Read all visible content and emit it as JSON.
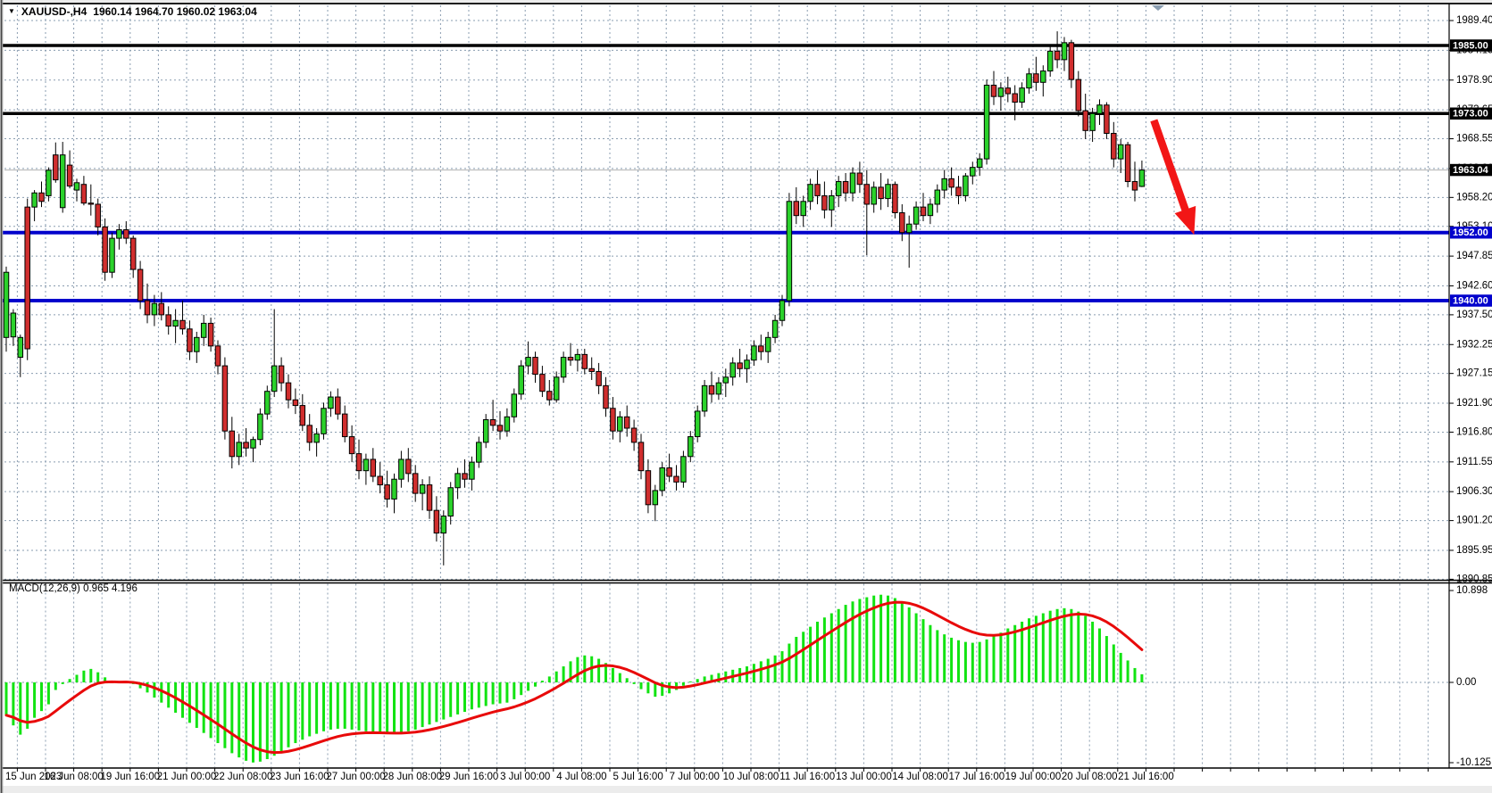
{
  "window": {
    "symbol_title": "XAUUSD-,H4",
    "ohlc_text": "1960.14 1964.70 1960.02 1963.04"
  },
  "indicator": {
    "label": "MACD(12,26,9) 0.965 4.196"
  },
  "colors": {
    "background": "#FFFFFF",
    "grid": "#8A9DB0",
    "candle_up": "#2BD22B",
    "candle_down": "#D02E2E",
    "candle_border": "#000000",
    "macd_bar": "#12E312",
    "macd_signal": "#E80A0A",
    "hline_black": "#000000",
    "hline_blue": "#0202CC",
    "current_price_line": "#BBBBBB",
    "badge_text": "#FFFFFF",
    "arrow": "#F21616",
    "axis_text": "#000000",
    "chrome": "#ECECEC"
  },
  "price_axis": {
    "ticks": [
      1989.4,
      1984.15,
      1978.9,
      1973.65,
      1968.55,
      1963.3,
      1958.2,
      1953.1,
      1947.85,
      1942.6,
      1937.5,
      1932.25,
      1927.15,
      1921.9,
      1916.8,
      1911.55,
      1906.3,
      1901.2,
      1895.95,
      1890.85
    ]
  },
  "time_axis": {
    "labels": [
      "15 Jun 2023",
      "16 Jun 08:00",
      "19 Jun 16:00",
      "21 Jun 00:00",
      "22 Jun 08:00",
      "23 Jun 16:00",
      "27 Jun 00:00",
      "28 Jun 08:00",
      "29 Jun 16:00",
      "3 Jul 00:00",
      "4 Jul 08:00",
      "5 Jul 16:00",
      "7 Jul 00:00",
      "10 Jul 08:00",
      "11 Jul 16:00",
      "13 Jul 00:00",
      "14 Jul 08:00",
      "17 Jul 16:00",
      "19 Jul 00:00",
      "20 Jul 08:00",
      "21 Jul 16:00"
    ]
  },
  "macd_axis": {
    "labels": [
      "10.898",
      "0.00",
      "-10.125"
    ],
    "values": [
      10.898,
      0.0,
      -10.125
    ]
  },
  "chart_data": [
    {
      "type": "candlestick",
      "symbol": "XAUUSD",
      "timeframe": "H4",
      "title": "XAUUSD-,H4",
      "last_ohlc": {
        "open": 1960.14,
        "high": 1964.7,
        "low": 1960.02,
        "close": 1963.04
      },
      "current_price": 1963.04,
      "ylim": [
        1890.6,
        1990.2
      ],
      "bars_per_x_label": 8,
      "hlines": [
        {
          "price": 1985.0,
          "style": "black"
        },
        {
          "price": 1973.0,
          "style": "black"
        },
        {
          "price": 1952.0,
          "style": "blue"
        },
        {
          "price": 1940.0,
          "style": "blue"
        }
      ],
      "arrow": {
        "from_bar": 162.7,
        "from_price": 1971.8,
        "to_bar": 168.4,
        "to_price": 1951.6
      },
      "candles": [
        [
          1933.5,
          1946.0,
          1931.0,
          1945.0
        ],
        [
          1933.6,
          1938.5,
          1932.0,
          1937.8
        ],
        [
          1930.0,
          1934.0,
          1926.5,
          1933.5
        ],
        [
          1956.5,
          1958.0,
          1929.5,
          1931.5
        ],
        [
          1956.5,
          1959.5,
          1954.0,
          1959.0
        ],
        [
          1959.0,
          1961.0,
          1956.5,
          1957.5
        ],
        [
          1958.5,
          1963.5,
          1957.5,
          1963.0
        ],
        [
          1965.7,
          1967.9,
          1960.8,
          1961.3
        ],
        [
          1956.4,
          1968.0,
          1955.5,
          1965.7
        ],
        [
          1963.9,
          1966.5,
          1959.8,
          1960.2
        ],
        [
          1959.5,
          1961.5,
          1957.5,
          1960.8
        ],
        [
          1960.5,
          1962.0,
          1956.8,
          1957.2
        ],
        [
          1957.2,
          1960.5,
          1955.0,
          1957.0
        ],
        [
          1957.0,
          1958.0,
          1951.5,
          1953.0
        ],
        [
          1953.0,
          1954.5,
          1943.5,
          1945.0
        ],
        [
          1945.0,
          1952.0,
          1944.0,
          1951.0
        ],
        [
          1951.0,
          1953.5,
          1949.0,
          1952.5
        ],
        [
          1952.5,
          1954.0,
          1950.0,
          1951.0
        ],
        [
          1951.0,
          1951.5,
          1944.0,
          1945.5
        ],
        [
          1945.5,
          1947.0,
          1938.5,
          1940.0
        ],
        [
          1940.0,
          1943.0,
          1936.0,
          1937.5
        ],
        [
          1937.5,
          1941.0,
          1935.5,
          1939.5
        ],
        [
          1939.5,
          1941.5,
          1936.5,
          1937.5
        ],
        [
          1937.5,
          1939.0,
          1934.0,
          1935.5
        ],
        [
          1935.5,
          1938.5,
          1932.5,
          1936.5
        ],
        [
          1936.5,
          1940.0,
          1934.0,
          1935.0
        ],
        [
          1935.0,
          1936.5,
          1929.5,
          1931.0
        ],
        [
          1931.0,
          1934.5,
          1929.0,
          1933.5
        ],
        [
          1933.5,
          1937.5,
          1932.0,
          1936.0
        ],
        [
          1936.0,
          1937.0,
          1931.0,
          1932.0
        ],
        [
          1932.0,
          1933.0,
          1927.0,
          1928.5
        ],
        [
          1928.5,
          1930.0,
          1915.5,
          1917.0
        ],
        [
          1917.0,
          1919.5,
          1910.4,
          1912.5
        ],
        [
          1912.5,
          1916.5,
          1911.0,
          1915.0
        ],
        [
          1915.0,
          1917.5,
          1912.5,
          1914.0
        ],
        [
          1914.0,
          1916.0,
          1911.5,
          1915.5
        ],
        [
          1915.5,
          1921.0,
          1914.5,
          1920.0
        ],
        [
          1920.0,
          1925.0,
          1919.0,
          1924.0
        ],
        [
          1924.0,
          1938.5,
          1923.0,
          1928.5
        ],
        [
          1928.5,
          1930.0,
          1924.0,
          1925.5
        ],
        [
          1925.5,
          1927.0,
          1921.0,
          1922.5
        ],
        [
          1922.5,
          1924.5,
          1920.0,
          1921.5
        ],
        [
          1921.5,
          1923.5,
          1917.0,
          1918.0
        ],
        [
          1918.0,
          1920.0,
          1913.5,
          1915.0
        ],
        [
          1915.0,
          1917.5,
          1912.5,
          1916.5
        ],
        [
          1916.5,
          1922.0,
          1915.5,
          1921.0
        ],
        [
          1921.0,
          1924.0,
          1919.5,
          1923.0
        ],
        [
          1923.0,
          1924.5,
          1919.0,
          1920.0
        ],
        [
          1920.0,
          1921.5,
          1915.0,
          1916.0
        ],
        [
          1916.0,
          1918.0,
          1911.5,
          1913.0
        ],
        [
          1913.0,
          1915.5,
          1908.5,
          1910.0
        ],
        [
          1910.0,
          1913.0,
          1907.5,
          1912.0
        ],
        [
          1912.0,
          1914.0,
          1908.0,
          1909.0
        ],
        [
          1909.0,
          1911.5,
          1906.0,
          1907.5
        ],
        [
          1907.5,
          1910.0,
          1903.5,
          1905.0
        ],
        [
          1905.0,
          1909.5,
          1902.5,
          1908.5
        ],
        [
          1908.5,
          1913.5,
          1907.0,
          1912.0
        ],
        [
          1912.0,
          1914.0,
          1908.0,
          1909.5
        ],
        [
          1909.5,
          1911.0,
          1904.5,
          1906.0
        ],
        [
          1906.0,
          1908.5,
          1903.0,
          1907.5
        ],
        [
          1907.5,
          1909.0,
          1901.5,
          1903.0
        ],
        [
          1903.0,
          1905.5,
          1897.5,
          1899.0
        ],
        [
          1899.0,
          1903.0,
          1893.3,
          1902.0
        ],
        [
          1902.0,
          1908.0,
          1900.5,
          1907.0
        ],
        [
          1907.0,
          1910.5,
          1905.0,
          1909.5
        ],
        [
          1909.5,
          1912.0,
          1907.0,
          1908.5
        ],
        [
          1908.5,
          1912.5,
          1906.5,
          1911.5
        ],
        [
          1911.5,
          1916.0,
          1910.5,
          1915.0
        ],
        [
          1915.0,
          1920.0,
          1914.0,
          1919.0
        ],
        [
          1919.0,
          1922.5,
          1917.0,
          1918.0
        ],
        [
          1918.0,
          1920.5,
          1915.5,
          1917.0
        ],
        [
          1917.0,
          1921.0,
          1916.0,
          1919.5
        ],
        [
          1919.5,
          1924.5,
          1918.5,
          1923.5
        ],
        [
          1923.5,
          1929.5,
          1922.5,
          1928.5
        ],
        [
          1928.5,
          1932.8,
          1927.0,
          1930.0
        ],
        [
          1930.0,
          1931.0,
          1925.5,
          1927.0
        ],
        [
          1927.0,
          1928.5,
          1923.0,
          1924.0
        ],
        [
          1924.0,
          1926.0,
          1921.5,
          1922.5
        ],
        [
          1922.5,
          1927.5,
          1922.0,
          1926.5
        ],
        [
          1926.5,
          1931.0,
          1925.5,
          1930.0
        ],
        [
          1930.0,
          1932.5,
          1928.5,
          1929.5
        ],
        [
          1929.5,
          1931.5,
          1927.5,
          1930.5
        ],
        [
          1930.5,
          1931.5,
          1927.0,
          1928.0
        ],
        [
          1928.0,
          1930.0,
          1926.0,
          1927.5
        ],
        [
          1927.5,
          1929.0,
          1923.5,
          1925.0
        ],
        [
          1925.0,
          1926.5,
          1919.5,
          1921.0
        ],
        [
          1921.0,
          1923.0,
          1915.5,
          1917.0
        ],
        [
          1917.0,
          1920.5,
          1915.0,
          1919.5
        ],
        [
          1919.5,
          1921.5,
          1916.0,
          1917.5
        ],
        [
          1917.5,
          1919.0,
          1913.5,
          1915.0
        ],
        [
          1915.0,
          1916.5,
          1908.5,
          1910.0
        ],
        [
          1910.0,
          1912.0,
          1902.5,
          1904.0
        ],
        [
          1904.0,
          1907.5,
          1901.1,
          1906.5
        ],
        [
          1906.5,
          1911.5,
          1905.5,
          1910.5
        ],
        [
          1910.5,
          1913.0,
          1908.0,
          1909.0
        ],
        [
          1909.0,
          1911.0,
          1906.5,
          1908.0
        ],
        [
          1908.0,
          1913.5,
          1907.0,
          1912.5
        ],
        [
          1912.5,
          1917.0,
          1911.5,
          1916.0
        ],
        [
          1916.0,
          1921.5,
          1915.0,
          1920.5
        ],
        [
          1920.5,
          1926.0,
          1919.5,
          1925.0
        ],
        [
          1925.0,
          1927.5,
          1922.0,
          1923.5
        ],
        [
          1923.5,
          1926.5,
          1922.5,
          1925.5
        ],
        [
          1925.5,
          1928.0,
          1923.0,
          1926.5
        ],
        [
          1926.5,
          1930.0,
          1925.0,
          1929.0
        ],
        [
          1929.0,
          1931.5,
          1926.5,
          1928.0
        ],
        [
          1928.0,
          1930.5,
          1925.5,
          1929.5
        ],
        [
          1929.5,
          1933.0,
          1928.5,
          1932.0
        ],
        [
          1932.0,
          1934.0,
          1929.5,
          1931.0
        ],
        [
          1931.0,
          1934.5,
          1929.0,
          1933.5
        ],
        [
          1933.5,
          1937.5,
          1932.5,
          1936.5
        ],
        [
          1936.5,
          1941.0,
          1935.5,
          1940.0
        ],
        [
          1940.0,
          1959.0,
          1939.0,
          1957.5
        ],
        [
          1957.5,
          1960.0,
          1953.5,
          1955.0
        ],
        [
          1955.0,
          1958.5,
          1953.0,
          1957.5
        ],
        [
          1957.5,
          1961.5,
          1956.0,
          1960.5
        ],
        [
          1960.5,
          1963.0,
          1957.0,
          1958.5
        ],
        [
          1958.5,
          1961.0,
          1954.5,
          1956.0
        ],
        [
          1956.0,
          1959.5,
          1953.0,
          1958.5
        ],
        [
          1958.5,
          1962.0,
          1956.5,
          1961.0
        ],
        [
          1961.0,
          1962.5,
          1957.5,
          1959.0
        ],
        [
          1959.0,
          1963.5,
          1957.5,
          1962.5
        ],
        [
          1962.5,
          1964.5,
          1959.0,
          1960.5
        ],
        [
          1960.5,
          1963.0,
          1948.0,
          1957.0
        ],
        [
          1957.0,
          1961.0,
          1955.5,
          1960.0
        ],
        [
          1960.0,
          1962.5,
          1956.0,
          1958.0
        ],
        [
          1958.0,
          1961.5,
          1956.5,
          1960.5
        ],
        [
          1960.5,
          1961.0,
          1954.5,
          1955.5
        ],
        [
          1955.5,
          1957.0,
          1950.5,
          1952.0
        ],
        [
          1952.0,
          1955.0,
          1945.8,
          1953.5
        ],
        [
          1953.5,
          1957.5,
          1952.5,
          1956.5
        ],
        [
          1956.5,
          1959.0,
          1954.0,
          1955.0
        ],
        [
          1955.0,
          1958.0,
          1953.5,
          1957.0
        ],
        [
          1957.0,
          1960.5,
          1955.5,
          1959.5
        ],
        [
          1959.5,
          1963.0,
          1958.0,
          1961.5
        ],
        [
          1961.5,
          1963.5,
          1958.5,
          1960.0
        ],
        [
          1960.0,
          1962.0,
          1957.0,
          1958.5
        ],
        [
          1958.5,
          1962.5,
          1957.5,
          1962.0
        ],
        [
          1962.0,
          1964.5,
          1960.5,
          1963.5
        ],
        [
          1963.5,
          1966.0,
          1962.0,
          1965.0
        ],
        [
          1965.0,
          1979.0,
          1964.0,
          1978.0
        ],
        [
          1978.0,
          1980.5,
          1974.5,
          1976.0
        ],
        [
          1976.0,
          1978.5,
          1973.5,
          1977.5
        ],
        [
          1977.5,
          1979.5,
          1975.0,
          1976.5
        ],
        [
          1976.5,
          1978.0,
          1971.8,
          1975.0
        ],
        [
          1975.0,
          1978.5,
          1974.0,
          1977.5
        ],
        [
          1977.5,
          1981.0,
          1976.5,
          1980.0
        ],
        [
          1980.0,
          1983.0,
          1977.0,
          1978.5
        ],
        [
          1978.5,
          1981.5,
          1976.0,
          1980.5
        ],
        [
          1980.5,
          1985.0,
          1979.5,
          1984.0
        ],
        [
          1984.0,
          1987.5,
          1981.0,
          1982.5
        ],
        [
          1982.5,
          1986.5,
          1980.5,
          1985.5
        ],
        [
          1985.5,
          1986.0,
          1977.5,
          1979.0
        ],
        [
          1979.0,
          1980.5,
          1972.5,
          1973.5
        ],
        [
          1973.5,
          1976.5,
          1968.5,
          1970.0
        ],
        [
          1970.0,
          1974.0,
          1968.0,
          1973.0
        ],
        [
          1973.0,
          1975.5,
          1971.0,
          1974.5
        ],
        [
          1974.5,
          1975.0,
          1968.5,
          1969.5
        ],
        [
          1969.5,
          1971.5,
          1963.5,
          1965.0
        ],
        [
          1965.0,
          1968.5,
          1962.5,
          1967.5
        ],
        [
          1967.5,
          1968.0,
          1960.0,
          1961.0
        ],
        [
          1961.0,
          1964.5,
          1957.5,
          1959.5
        ],
        [
          1960.14,
          1964.7,
          1960.02,
          1963.04
        ]
      ]
    },
    {
      "type": "bar",
      "title": "MACD(12,26,9)",
      "main_value": 0.965,
      "signal_value": 4.196,
      "signal_period": 9,
      "y_ticks": [
        10.898,
        0.0,
        -10.125
      ],
      "values": [
        -3.9,
        -5.1,
        -6.2,
        -5.5,
        -4.2,
        -3.4,
        -2.6,
        -0.9,
        -0.2,
        0.4,
        0.9,
        1.4,
        1.6,
        1.2,
        0.6,
        0.2,
        -0.1,
        0.15,
        -0.2,
        -0.7,
        -1.2,
        -1.8,
        -2.4,
        -3.0,
        -3.6,
        -4.2,
        -4.8,
        -5.4,
        -6.0,
        -6.6,
        -7.2,
        -7.8,
        -8.4,
        -8.9,
        -9.3,
        -9.5,
        -9.4,
        -9.1,
        -8.7,
        -8.2,
        -7.7,
        -7.2,
        -6.8,
        -6.4,
        -6.1,
        -5.8,
        -5.6,
        -5.5,
        -5.5,
        -5.6,
        -5.7,
        -5.8,
        -5.9,
        -6.0,
        -6.1,
        -6.1,
        -6.0,
        -5.8,
        -5.6,
        -5.3,
        -5.0,
        -4.7,
        -4.4,
        -4.1,
        -3.8,
        -3.5,
        -3.2,
        -3.0,
        -2.8,
        -2.6,
        -2.5,
        -2.4,
        -2.0,
        -1.5,
        -1.0,
        -0.5,
        0.2,
        0.7,
        1.3,
        1.9,
        2.5,
        3.0,
        3.2,
        3.1,
        2.8,
        2.3,
        1.7,
        1.1,
        0.5,
        -0.2,
        -0.8,
        -1.3,
        -1.7,
        -1.6,
        -1.3,
        -0.9,
        -0.4,
        0.1,
        0.4,
        0.7,
        0.9,
        1.1,
        1.3,
        1.5,
        1.7,
        1.9,
        2.2,
        2.5,
        2.8,
        3.2,
        3.7,
        4.6,
        5.4,
        6.0,
        6.6,
        7.2,
        7.7,
        8.2,
        8.7,
        9.2,
        9.6,
        9.9,
        10.1,
        10.3,
        10.4,
        10.3,
        10.0,
        9.5,
        8.9,
        8.2,
        7.5,
        6.8,
        6.2,
        5.7,
        5.3,
        5.0,
        4.8,
        4.7,
        4.8,
        5.1,
        5.5,
        5.9,
        6.4,
        6.8,
        7.2,
        7.6,
        7.9,
        8.2,
        8.5,
        8.7,
        8.8,
        8.7,
        8.4,
        7.9,
        7.2,
        6.4,
        5.5,
        4.5,
        3.5,
        2.6,
        1.7,
        0.965
      ]
    }
  ]
}
